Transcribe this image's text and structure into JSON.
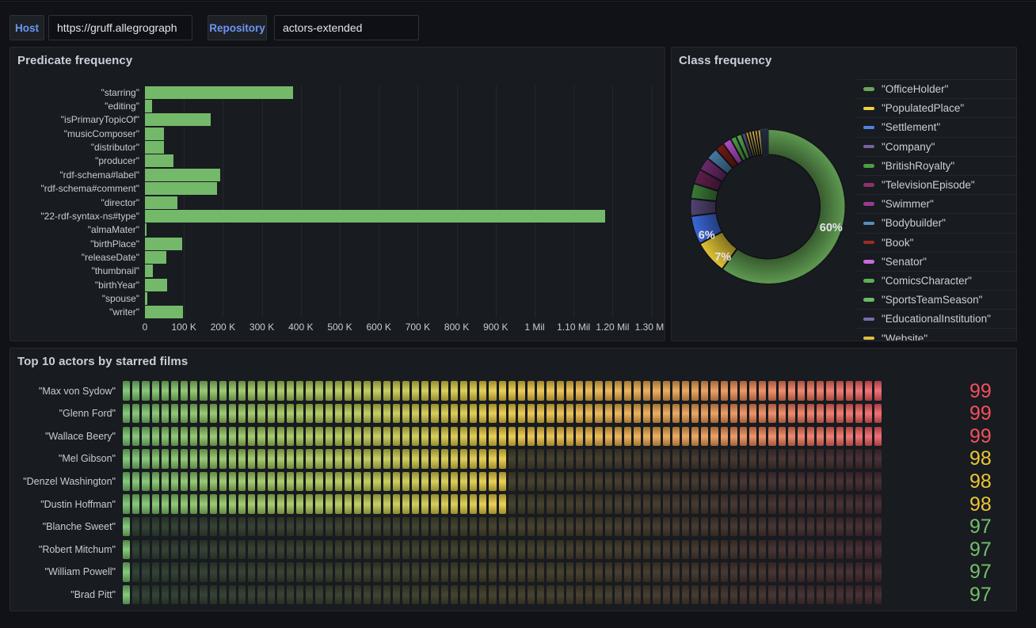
{
  "colors": {
    "page_bg": "#111217",
    "panel_bg": "#181b20",
    "panel_border": "#25282e",
    "text_primary": "#cdced9",
    "text_secondary": "#c9cbd2",
    "variable_label_blue": "#6c95f2",
    "bar_green": "#74b969",
    "grid_line": "rgba(240,250,255,0.06)"
  },
  "toolbar": {
    "variables": [
      {
        "label": "Host",
        "value": "https://gruff.allegrograph"
      },
      {
        "label": "Repository",
        "value": "actors-extended"
      }
    ]
  },
  "chart_data": [
    {
      "id": "predicate_frequency",
      "type": "bar",
      "orientation": "horizontal",
      "title": "Predicate frequency",
      "categories": [
        "\"starring\"",
        "\"editing\"",
        "\"isPrimaryTopicOf\"",
        "\"musicComposer\"",
        "\"distributor\"",
        "\"producer\"",
        "\"rdf-schema#label\"",
        "\"rdf-schema#comment\"",
        "\"director\"",
        "\"22-rdf-syntax-ns#type\"",
        "\"almaMater\"",
        "\"birthPlace\"",
        "\"releaseDate\"",
        "\"thumbnail\"",
        "\"birthYear\"",
        "\"spouse\"",
        "\"writer\""
      ],
      "values": [
        379000,
        18000,
        168000,
        49000,
        48000,
        74000,
        192000,
        184000,
        83000,
        1180000,
        3000,
        95000,
        54000,
        21000,
        56000,
        5000,
        98000
      ],
      "bar_color": "#74b969",
      "xlim": [
        0,
        1340000
      ],
      "grid": true,
      "x_ticks": [
        {
          "value": 0,
          "label": "0"
        },
        {
          "value": 100000,
          "label": "100 K"
        },
        {
          "value": 200000,
          "label": "200 K"
        },
        {
          "value": 300000,
          "label": "300 K"
        },
        {
          "value": 400000,
          "label": "400 K"
        },
        {
          "value": 500000,
          "label": "500 K"
        },
        {
          "value": 600000,
          "label": "600 K"
        },
        {
          "value": 700000,
          "label": "700 K"
        },
        {
          "value": 800000,
          "label": "800 K"
        },
        {
          "value": 900000,
          "label": "900 K"
        },
        {
          "value": 1000000,
          "label": "1 Mil"
        },
        {
          "value": 1100000,
          "label": "1.10 Mil"
        },
        {
          "value": 1200000,
          "label": "1.20 Mil"
        },
        {
          "value": 1300000,
          "label": "1.30 Mil"
        }
      ]
    },
    {
      "id": "class_frequency",
      "type": "pie",
      "title": "Class frequency",
      "donut": true,
      "legend_position": "right",
      "slices": [
        {
          "label": "\"OfficeHolder\"",
          "pct": 60,
          "color": "#69a65a",
          "donut_color": "#64a356",
          "pct_label": "60%"
        },
        {
          "label": "\"PopulatedPlace\"",
          "pct": 7,
          "color": "#efd23f",
          "donut_color": "#ecce38",
          "pct_label": "7%"
        },
        {
          "label": "\"Settlement\"",
          "pct": 6,
          "color": "#5083e0",
          "donut_color": "#3e6ee4",
          "pct_label": "6%"
        },
        {
          "label": "\"Company\"",
          "pct": 3.6,
          "color": "#75619b",
          "donut_color": "#57477a",
          "pct_label": ""
        },
        {
          "label": "\"BritishRoyalty\"",
          "pct": 3.2,
          "color": "#4e9e44",
          "donut_color": "#3f8139",
          "pct_label": ""
        },
        {
          "label": "\"TelevisionEpisode\"",
          "pct": 3.1,
          "color": "#8e3168",
          "donut_color": "#63204f",
          "pct_label": ""
        },
        {
          "label": "\"Swimmer\"",
          "pct": 2.8,
          "color": "#963d8f",
          "donut_color": "#702c6d",
          "pct_label": ""
        },
        {
          "label": "\"Bodybuilder\"",
          "pct": 2.5,
          "color": "#5590c0",
          "donut_color": "#4a81ac",
          "pct_label": ""
        },
        {
          "label": "\"Book\"",
          "pct": 1.9,
          "color": "#9e2b20",
          "donut_color": "#7a1b14",
          "pct_label": ""
        },
        {
          "label": "\"Senator\"",
          "pct": 1.8,
          "color": "#ca6bdc",
          "donut_color": "#bc4fcb",
          "pct_label": ""
        },
        {
          "label": "\"ComicsCharacter\"",
          "pct": 1.25,
          "color": "#5faf54",
          "donut_color": "#4fa447",
          "pct_label": ""
        },
        {
          "label": "\"SportsTeamSeason\"",
          "pct": 1.2,
          "color": "#6dba64",
          "donut_color": "#55ac50",
          "pct_label": ""
        },
        {
          "label": "\"EducationalInstitution\"",
          "pct": 0.86,
          "color": "#7a6bad",
          "donut_color": "#5d4e80",
          "pct_label": ""
        },
        {
          "label": "\"Website\"",
          "pct": 0.64,
          "color": "#e0bd3e",
          "donut_color": "#dcb945",
          "pct_label": ""
        },
        {
          "label": "",
          "pct": 0.64,
          "color": "#d9b13c",
          "pct_label": ""
        },
        {
          "label": "",
          "pct": 0.64,
          "color": "#e3c24c",
          "pct_label": ""
        },
        {
          "label": "",
          "pct": 0.64,
          "color": "#d9b13c",
          "pct_label": ""
        },
        {
          "label": "",
          "pct": 0.64,
          "color": "#e3c24c",
          "pct_label": ""
        },
        {
          "label": "",
          "pct": 0.5,
          "color": "#1f2736",
          "stroke": "#2e3a55",
          "pct_label": ""
        },
        {
          "label": "",
          "pct": 0.5,
          "color": "#222b3b",
          "stroke": "#2e3a55",
          "pct_label": ""
        },
        {
          "label": "",
          "pct": 0.5,
          "color": "#1f2736",
          "stroke": "#2e3a55",
          "pct_label": ""
        }
      ]
    },
    {
      "id": "top10_actors",
      "type": "bar-gauge",
      "display_mode": "lcd",
      "title": "Top 10 actors by starred films",
      "min": 97,
      "max": 99,
      "cells": 79,
      "rows": [
        {
          "label": "\"Max von Sydow\"",
          "value": 99
        },
        {
          "label": "\"Glenn Ford\"",
          "value": 99
        },
        {
          "label": "\"Wallace Beery\"",
          "value": 99
        },
        {
          "label": "\"Mel Gibson\"",
          "value": 98
        },
        {
          "label": "\"Denzel Washington\"",
          "value": 98
        },
        {
          "label": "\"Dustin Hoffman\"",
          "value": 98
        },
        {
          "label": "\"Blanche Sweet\"",
          "value": 97
        },
        {
          "label": "\"Robert Mitchum\"",
          "value": 97
        },
        {
          "label": "\"William Powell\"",
          "value": 97
        },
        {
          "label": "\"Brad Pitt\"",
          "value": 97
        }
      ],
      "gradient": [
        [
          0,
          "#73bf69"
        ],
        [
          0.25,
          "#a9c653"
        ],
        [
          0.5,
          "#e8c83c"
        ],
        [
          0.75,
          "#e89b4d"
        ],
        [
          1,
          "#ef5a60"
        ]
      ],
      "value_colors": {
        "97": "#73bf69",
        "98": "#e9c633",
        "99": "#f2505c"
      }
    }
  ]
}
